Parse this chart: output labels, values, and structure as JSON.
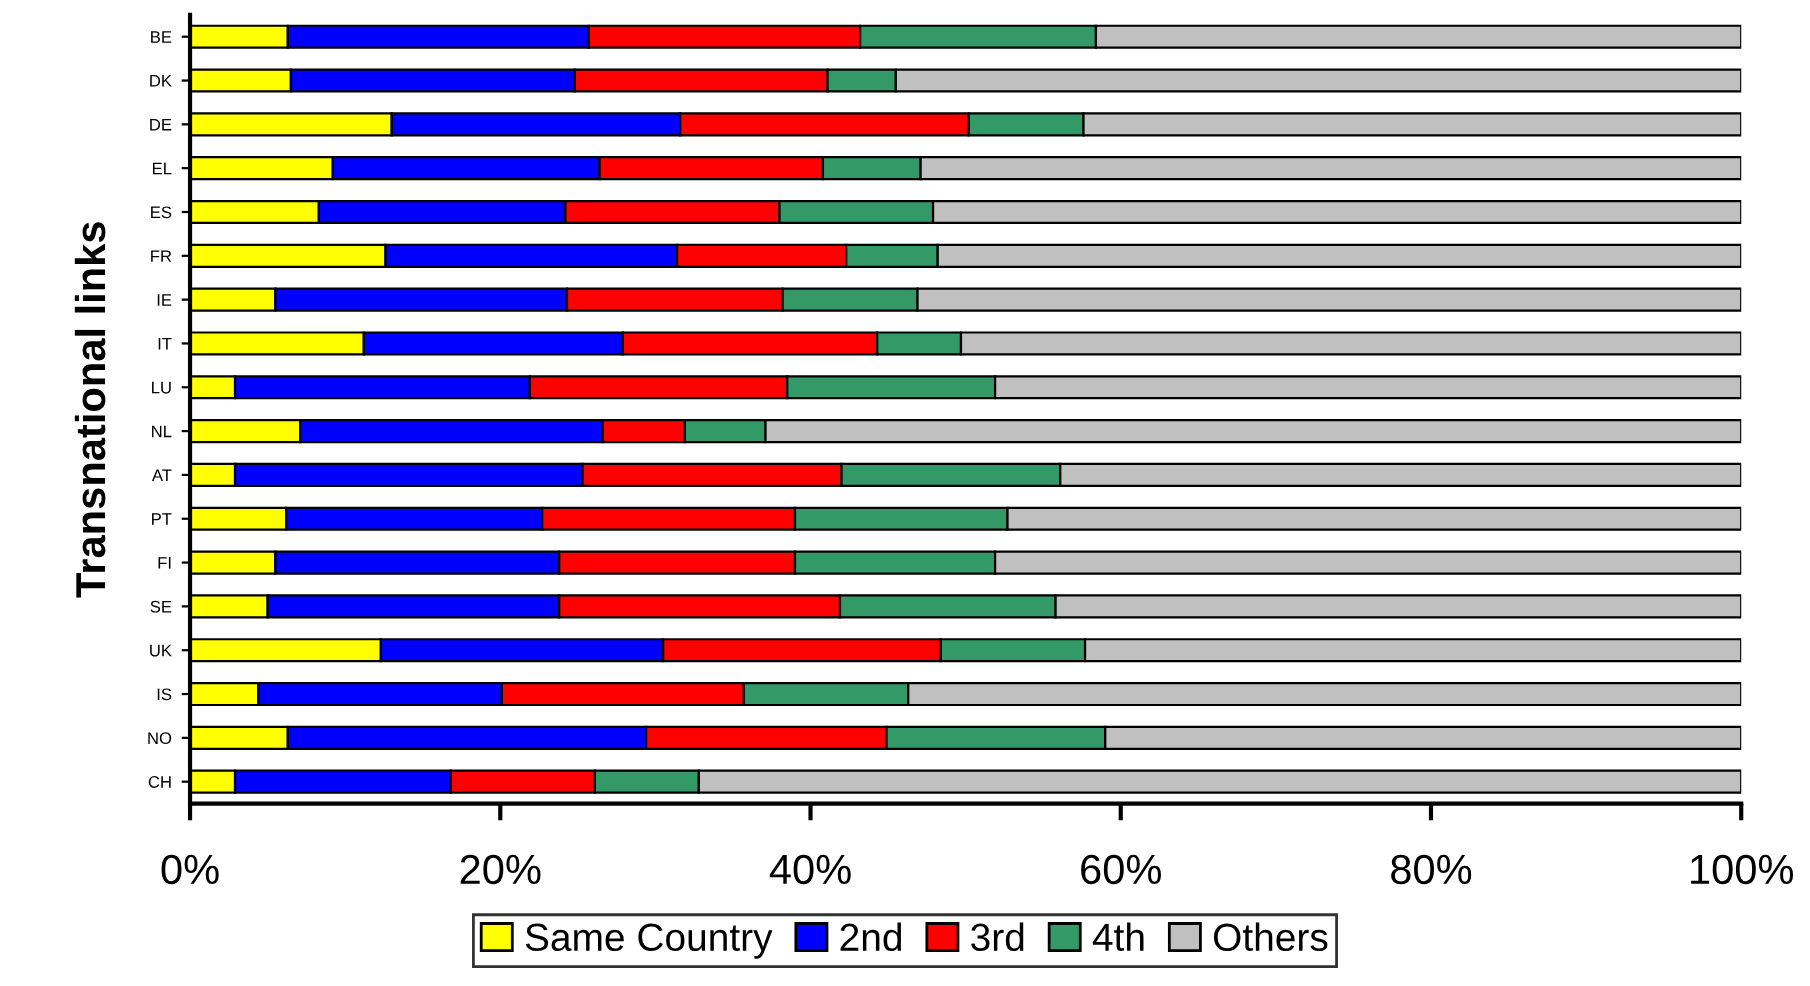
{
  "chart_data": {
    "type": "bar",
    "orientation": "horizontal",
    "stacked": true,
    "ylabel": "Transnational links",
    "categories": [
      "BE",
      "DK",
      "DE",
      "EL",
      "ES",
      "FR",
      "IE",
      "IT",
      "LU",
      "NL",
      "AT",
      "PT",
      "FI",
      "SE",
      "UK",
      "IS",
      "NO",
      "CH"
    ],
    "series": [
      {
        "name": "Same Country",
        "color": "#ffff00",
        "values": [
          6.3,
          6.5,
          13.0,
          9.2,
          8.3,
          12.6,
          5.5,
          11.2,
          2.9,
          7.1,
          2.9,
          6.2,
          5.5,
          5.0,
          12.3,
          4.4,
          6.3,
          2.9
        ]
      },
      {
        "name": "2nd",
        "color": "#0000ff",
        "values": [
          19.4,
          18.3,
          18.6,
          17.2,
          15.9,
          18.8,
          18.8,
          16.7,
          19.0,
          19.5,
          22.4,
          16.5,
          18.3,
          18.8,
          18.2,
          15.7,
          23.1,
          13.9
        ]
      },
      {
        "name": "3rd",
        "color": "#ff0000",
        "values": [
          17.5,
          16.3,
          18.6,
          14.4,
          13.8,
          10.9,
          13.9,
          16.4,
          16.6,
          5.3,
          16.7,
          16.3,
          15.2,
          18.1,
          17.9,
          15.6,
          15.5,
          9.3
        ]
      },
      {
        "name": "4th",
        "color": "#339966",
        "values": [
          15.2,
          4.4,
          7.4,
          6.3,
          9.9,
          5.9,
          8.7,
          5.4,
          13.4,
          5.2,
          14.1,
          13.7,
          12.9,
          13.9,
          9.3,
          10.6,
          14.1,
          6.7
        ]
      },
      {
        "name": "Others",
        "color": "#c0c0c0",
        "values": [
          41.6,
          54.5,
          42.4,
          52.9,
          52.1,
          51.8,
          53.1,
          50.3,
          48.1,
          62.9,
          43.9,
          47.3,
          48.1,
          44.2,
          42.3,
          53.7,
          41.0,
          67.2
        ]
      }
    ],
    "xlim": [
      0,
      100
    ],
    "xticks": [
      {
        "value": 0,
        "label": "0%"
      },
      {
        "value": 20,
        "label": "20%"
      },
      {
        "value": 40,
        "label": "40%"
      },
      {
        "value": 60,
        "label": "60%"
      },
      {
        "value": 80,
        "label": "80%"
      },
      {
        "value": 100,
        "label": "100%"
      }
    ],
    "grid": false,
    "legend": "bottom"
  }
}
